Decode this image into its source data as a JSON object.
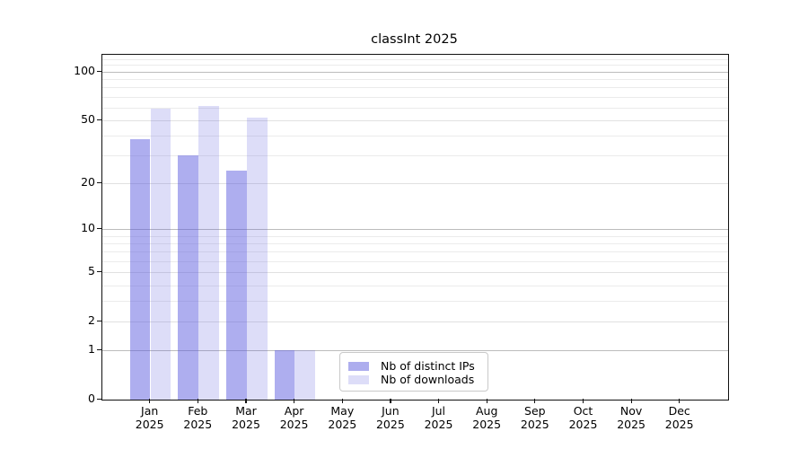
{
  "figure": {
    "title": "classInt 2025",
    "background": "#ffffff"
  },
  "legend": {
    "items": [
      {
        "label": "Nb of distinct IPs",
        "color": "#adadee"
      },
      {
        "label": "Nb of downloads",
        "color": "#ddddf8"
      }
    ]
  },
  "chart_data": {
    "type": "bar",
    "title": "classInt 2025",
    "x_unit": "month",
    "categories": [
      "Jan 2025",
      "Feb 2025",
      "Mar 2025",
      "Apr 2025",
      "May 2025",
      "Jun 2025",
      "Jul 2025",
      "Aug 2025",
      "Sep 2025",
      "Oct 2025",
      "Nov 2025",
      "Dec 2025"
    ],
    "series": [
      {
        "name": "Nb of distinct IPs",
        "color": "#adadee",
        "fill": "rgba(85,85,221,0.48)",
        "values": [
          38,
          30,
          24,
          1,
          0,
          0,
          0,
          0,
          0,
          0,
          0,
          0
        ]
      },
      {
        "name": "Nb of downloads",
        "color": "#ddddf8",
        "fill": "rgba(85,85,221,0.20)",
        "values": [
          59,
          61,
          52,
          1,
          0,
          0,
          0,
          0,
          0,
          0,
          0,
          0
        ]
      }
    ],
    "y_axis": {
      "scale": "log1p",
      "tick_values": [
        0,
        1,
        2,
        5,
        10,
        20,
        50,
        100
      ],
      "decade_gridlines": [
        1,
        10,
        100
      ],
      "mid_gridlines": [
        2,
        5,
        20,
        50
      ],
      "minor_gridlines": [
        3,
        4,
        6,
        7,
        8,
        9,
        30,
        40,
        60,
        70,
        80,
        90,
        110,
        120
      ],
      "range": [
        0,
        127
      ]
    },
    "grid": true,
    "legend_position": "bottom-center"
  }
}
